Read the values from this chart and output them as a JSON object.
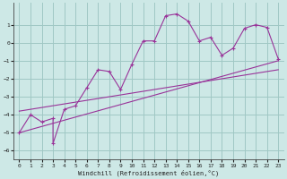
{
  "xlabel": "Windchill (Refroidissement éolien,°C)",
  "bg_color": "#cde8e6",
  "grid_color": "#a0c8c4",
  "line_color": "#993399",
  "xlim": [
    -0.5,
    23.5
  ],
  "ylim": [
    -6.5,
    2.2
  ],
  "yticks": [
    -6,
    -5,
    -4,
    -3,
    -2,
    -1,
    0,
    1
  ],
  "xticks": [
    0,
    1,
    2,
    3,
    4,
    5,
    6,
    7,
    8,
    9,
    10,
    11,
    12,
    13,
    14,
    15,
    16,
    17,
    18,
    19,
    20,
    21,
    22,
    23
  ],
  "series1_x": [
    0,
    1,
    2,
    3,
    3,
    4,
    5,
    6,
    7,
    8,
    9,
    10,
    11,
    12,
    13,
    14,
    15,
    16,
    17,
    18,
    19,
    20,
    21,
    22,
    23
  ],
  "series1_y": [
    -5.0,
    -4.0,
    -4.4,
    -4.2,
    -5.6,
    -3.7,
    -3.5,
    -2.5,
    -1.5,
    -1.6,
    -2.6,
    -1.2,
    0.1,
    0.1,
    1.5,
    1.6,
    1.2,
    0.1,
    0.3,
    -0.7,
    -0.3,
    0.8,
    1.0,
    0.85,
    -0.9
  ],
  "series2_x": [
    0,
    23
  ],
  "series2_y": [
    -5.0,
    -1.0
  ],
  "series3_x": [
    0,
    23
  ],
  "series3_y": [
    -3.8,
    -1.5
  ]
}
